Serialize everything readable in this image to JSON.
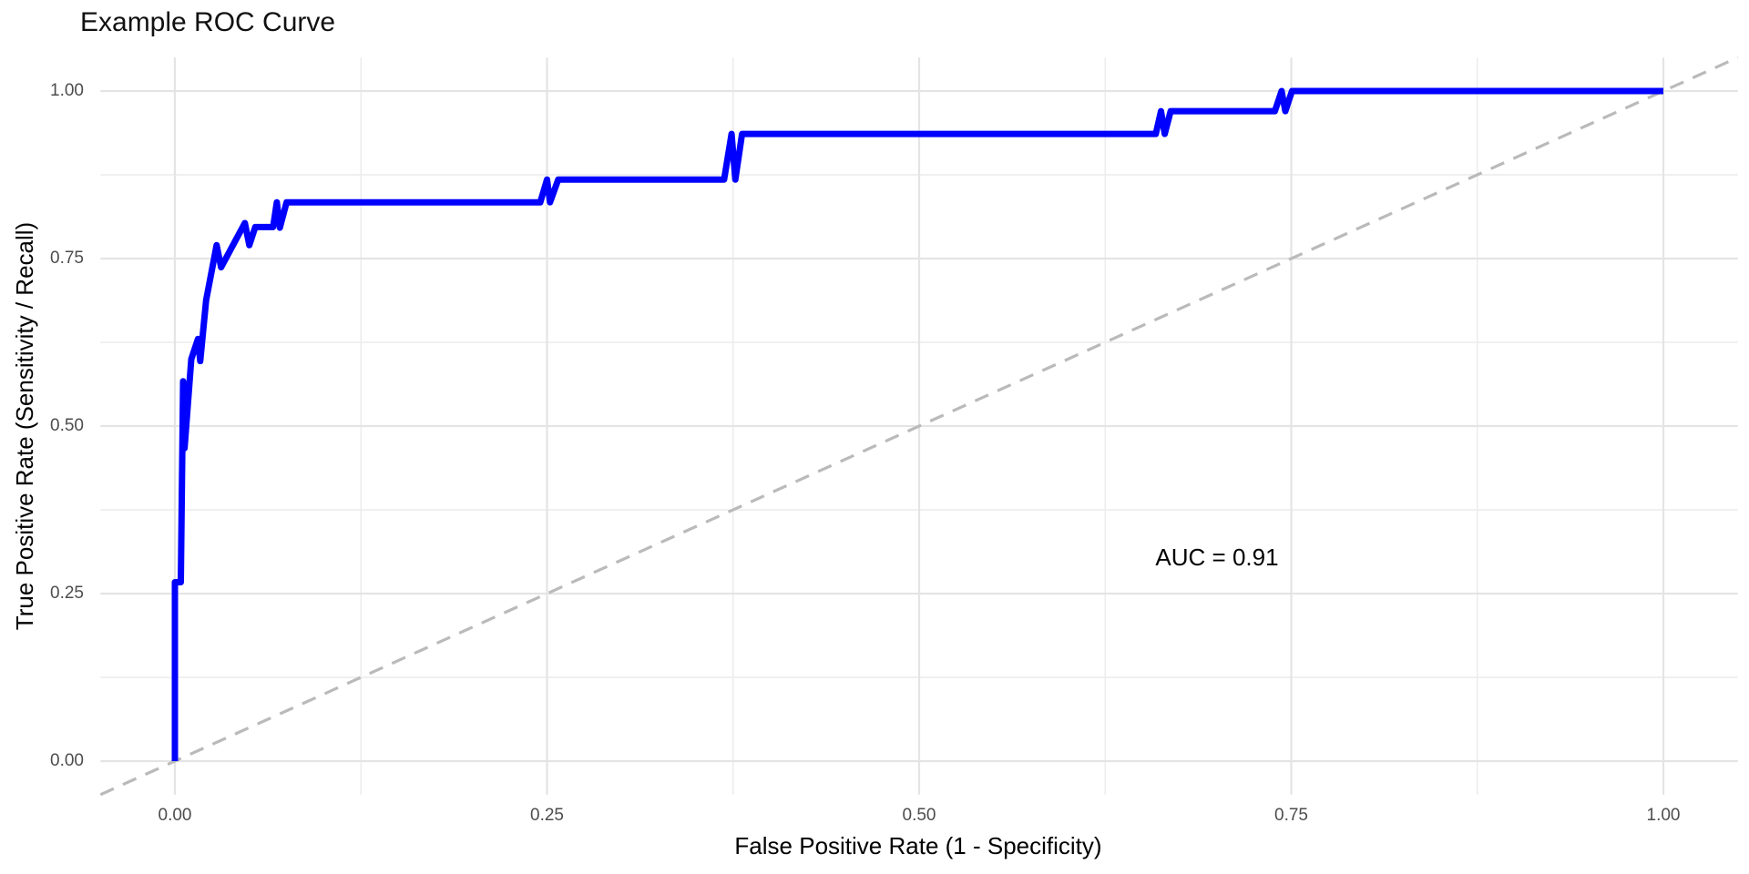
{
  "chart_data": {
    "type": "line",
    "title": "Example ROC Curve",
    "xlabel": "False Positive Rate (1 - Specificity)",
    "ylabel": "True Positive Rate (Sensitivity / Recall)",
    "xlim": [
      0,
      1
    ],
    "ylim": [
      0,
      1
    ],
    "grid": true,
    "legend": "none",
    "x_ticks": {
      "values": [
        0,
        0.25,
        0.5,
        0.75,
        1
      ],
      "labels": [
        "0.00",
        "0.25",
        "0.50",
        "0.75",
        "1.00"
      ]
    },
    "y_ticks": {
      "values": [
        0,
        0.25,
        0.5,
        0.75,
        1
      ],
      "labels": [
        "0.00",
        "0.25",
        "0.50",
        "0.75",
        "1.00"
      ]
    },
    "x_minor": [
      0.125,
      0.375,
      0.625,
      0.875
    ],
    "y_minor": [
      0.125,
      0.375,
      0.625,
      0.875
    ],
    "series": [
      {
        "name": "ROC curve",
        "color": "#0000FF",
        "linewidth": 7,
        "points": [
          [
            0.0,
            0.0
          ],
          [
            0.0,
            0.267
          ],
          [
            0.004,
            0.267
          ],
          [
            0.0055,
            0.567
          ],
          [
            0.0065,
            0.467
          ],
          [
            0.011,
            0.6
          ],
          [
            0.0155,
            0.63
          ],
          [
            0.017,
            0.597
          ],
          [
            0.021,
            0.688
          ],
          [
            0.028,
            0.77
          ],
          [
            0.031,
            0.737
          ],
          [
            0.047,
            0.803
          ],
          [
            0.05,
            0.77
          ],
          [
            0.054,
            0.797
          ],
          [
            0.066,
            0.797
          ],
          [
            0.0685,
            0.834
          ],
          [
            0.0705,
            0.796
          ],
          [
            0.075,
            0.834
          ],
          [
            0.2455,
            0.834
          ],
          [
            0.25,
            0.868
          ],
          [
            0.252,
            0.834
          ],
          [
            0.2575,
            0.868
          ],
          [
            0.369,
            0.868
          ],
          [
            0.374,
            0.936
          ],
          [
            0.3765,
            0.868
          ],
          [
            0.381,
            0.936
          ],
          [
            0.659,
            0.936
          ],
          [
            0.6625,
            0.97
          ],
          [
            0.665,
            0.936
          ],
          [
            0.669,
            0.97
          ],
          [
            0.739,
            0.97
          ],
          [
            0.7435,
            1.0
          ],
          [
            0.746,
            0.97
          ],
          [
            0.7505,
            1.0
          ],
          [
            1.0,
            1.0
          ]
        ]
      },
      {
        "name": "chance diagonal",
        "color": "#BABABA",
        "style": "dashed",
        "linewidth": 3.2,
        "points": [
          [
            0,
            0
          ],
          [
            1,
            1
          ]
        ]
      }
    ],
    "annotations": [
      {
        "text": "AUC = 0.91",
        "x": 0.7,
        "y": 0.3,
        "color": "#000000"
      }
    ],
    "auc": 0.91
  },
  "colors": {
    "curve": "#0000FF",
    "diagonal": "#BABABA",
    "grid_major": "#E4E4E4",
    "grid_minor": "#ECECEC",
    "tick_label": "#4D4D4D",
    "text": "#000000",
    "background": "#FFFFFF"
  }
}
